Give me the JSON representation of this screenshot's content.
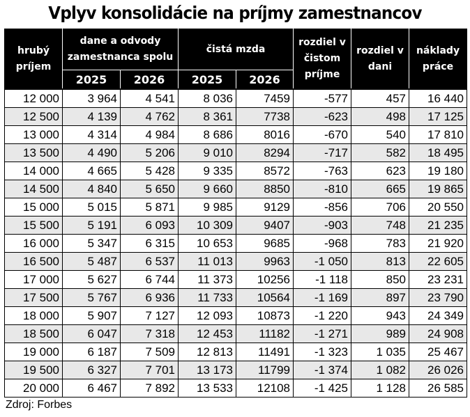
{
  "title": "Vplyv konsolidácie na príjmy zamestnancov",
  "header": {
    "gross_income": "hrubý príjem",
    "taxes_group": "dane a odvody zamestnanca spolu",
    "net_wage_group": "čistá mzda",
    "diff_net": "rozdiel v čistom príjme",
    "diff_tax": "rozdiel v dani",
    "labor_cost": "náklady práce",
    "year_2025": "2025",
    "year_2026": "2026"
  },
  "rows": [
    {
      "gross": "12 000",
      "tax2025": "3 964",
      "tax2026": "4 541",
      "net2025": "8 036",
      "net2026": "7459",
      "diff_net": "-577",
      "diff_tax": "457",
      "cost": "16 440"
    },
    {
      "gross": "12 500",
      "tax2025": "4 139",
      "tax2026": "4 762",
      "net2025": "8 361",
      "net2026": "7738",
      "diff_net": "-623",
      "diff_tax": "498",
      "cost": "17 125"
    },
    {
      "gross": "13 000",
      "tax2025": "4 314",
      "tax2026": "4 984",
      "net2025": "8 686",
      "net2026": "8016",
      "diff_net": "-670",
      "diff_tax": "540",
      "cost": "17 810"
    },
    {
      "gross": "13 500",
      "tax2025": "4 490",
      "tax2026": "5 206",
      "net2025": "9 010",
      "net2026": "8294",
      "diff_net": "-717",
      "diff_tax": "582",
      "cost": "18 495"
    },
    {
      "gross": "14 000",
      "tax2025": "4 665",
      "tax2026": "5 428",
      "net2025": "9 335",
      "net2026": "8572",
      "diff_net": "-763",
      "diff_tax": "623",
      "cost": "19 180"
    },
    {
      "gross": "14 500",
      "tax2025": "4 840",
      "tax2026": "5 650",
      "net2025": "9 660",
      "net2026": "8850",
      "diff_net": "-810",
      "diff_tax": "665",
      "cost": "19 865"
    },
    {
      "gross": "15 000",
      "tax2025": "5 015",
      "tax2026": "5 871",
      "net2025": "9 985",
      "net2026": "9129",
      "diff_net": "-856",
      "diff_tax": "706",
      "cost": "20 550"
    },
    {
      "gross": "15 500",
      "tax2025": "5 191",
      "tax2026": "6 093",
      "net2025": "10 309",
      "net2026": "9407",
      "diff_net": "-903",
      "diff_tax": "748",
      "cost": "21 235"
    },
    {
      "gross": "16 000",
      "tax2025": "5 347",
      "tax2026": "6 315",
      "net2025": "10 653",
      "net2026": "9685",
      "diff_net": "-968",
      "diff_tax": "783",
      "cost": "21 920"
    },
    {
      "gross": "16 500",
      "tax2025": "5 487",
      "tax2026": "6 537",
      "net2025": "11 013",
      "net2026": "9963",
      "diff_net": "-1 050",
      "diff_tax": "813",
      "cost": "22 605"
    },
    {
      "gross": "17 000",
      "tax2025": "5 627",
      "tax2026": "6 744",
      "net2025": "11 373",
      "net2026": "10256",
      "diff_net": "-1 118",
      "diff_tax": "850",
      "cost": "23 231"
    },
    {
      "gross": "17 500",
      "tax2025": "5 767",
      "tax2026": "6 936",
      "net2025": "11 733",
      "net2026": "10564",
      "diff_net": "-1 169",
      "diff_tax": "897",
      "cost": "23 790"
    },
    {
      "gross": "18 000",
      "tax2025": "5 907",
      "tax2026": "7 127",
      "net2025": "12 093",
      "net2026": "10873",
      "diff_net": "-1 220",
      "diff_tax": "943",
      "cost": "24 349"
    },
    {
      "gross": "18 500",
      "tax2025": "6 047",
      "tax2026": "7 318",
      "net2025": "12 453",
      "net2026": "11182",
      "diff_net": "-1 271",
      "diff_tax": "989",
      "cost": "24 908"
    },
    {
      "gross": "19 000",
      "tax2025": "6 187",
      "tax2026": "7 509",
      "net2025": "12 813",
      "net2026": "11491",
      "diff_net": "-1 323",
      "diff_tax": "1 035",
      "cost": "25 467"
    },
    {
      "gross": "19 500",
      "tax2025": "6 327",
      "tax2026": "7 701",
      "net2025": "13 173",
      "net2026": "11799",
      "diff_net": "-1 374",
      "diff_tax": "1 082",
      "cost": "26 026"
    },
    {
      "gross": "20 000",
      "tax2025": "6 467",
      "tax2026": "7 892",
      "net2025": "13 533",
      "net2026": "12108",
      "diff_net": "-1 425",
      "diff_tax": "1 128",
      "cost": "26 585"
    }
  ],
  "source": "Zdroj: Forbes"
}
